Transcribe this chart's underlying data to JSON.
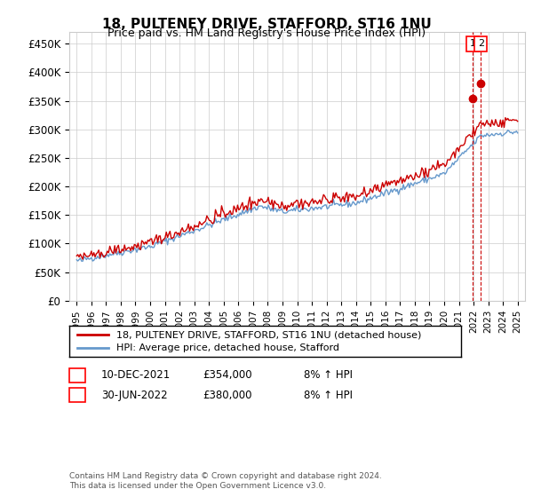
{
  "title": "18, PULTENEY DRIVE, STAFFORD, ST16 1NU",
  "subtitle": "Price paid vs. HM Land Registry's House Price Index (HPI)",
  "ylim": [
    0,
    450000
  ],
  "yticks": [
    0,
    50000,
    100000,
    150000,
    200000,
    250000,
    300000,
    350000,
    400000,
    450000
  ],
  "ytick_labels": [
    "£0",
    "£50K",
    "£100K",
    "£150K",
    "£200K",
    "£250K",
    "£300K",
    "£350K",
    "£400K",
    "£450K"
  ],
  "hpi_color": "#6699cc",
  "price_color": "#cc0000",
  "vline_color": "#cc0000",
  "marker_color": "#cc0000",
  "annotation1_date": "10-DEC-2021",
  "annotation1_price": "£354,000",
  "annotation1_hpi": "8% ↑ HPI",
  "annotation2_date": "30-JUN-2022",
  "annotation2_price": "£380,000",
  "annotation2_hpi": "8% ↑ HPI",
  "legend_line1": "18, PULTENEY DRIVE, STAFFORD, ST16 1NU (detached house)",
  "legend_line2": "HPI: Average price, detached house, Stafford",
  "footer": "Contains HM Land Registry data © Crown copyright and database right 2024.\nThis data is licensed under the Open Government Licence v3.0.",
  "background_color": "#ffffff",
  "grid_color": "#cccccc"
}
